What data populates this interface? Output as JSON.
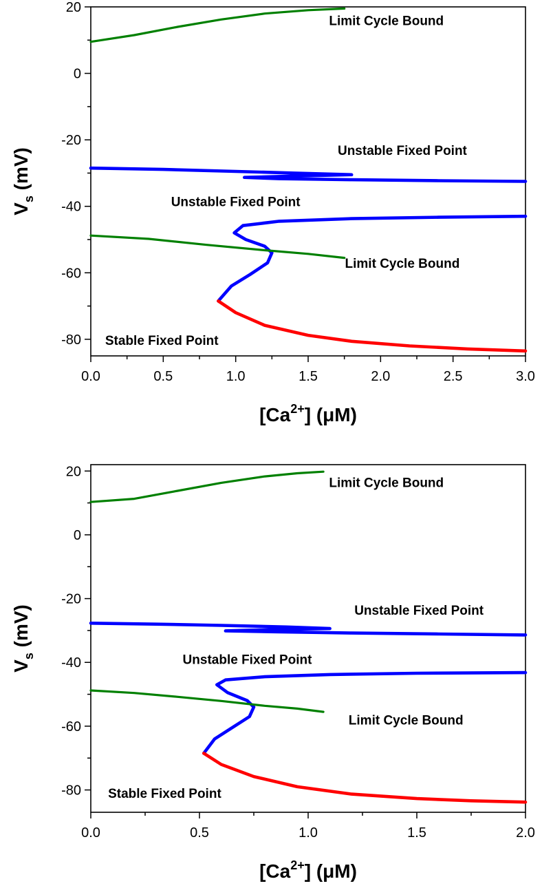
{
  "chart_data": [
    {
      "type": "line",
      "xlabel": "[Ca2+] (μM)",
      "ylabel": "Vs (mV)",
      "xlim": [
        0.0,
        3.0
      ],
      "ylim": [
        -85,
        20
      ],
      "xticks": [
        "0.0",
        "0.5",
        "1.0",
        "1.5",
        "2.0",
        "2.5",
        "3.0"
      ],
      "yticks": [
        "20",
        "0",
        "-20",
        "-40",
        "-60",
        "-80"
      ],
      "grid": false,
      "colors": {
        "stable": "#ff0000",
        "unstable": "#0000ff",
        "limit_cycle": "#008000"
      },
      "series": [
        {
          "kind": "limit_cycle",
          "points": [
            [
              0.0,
              9.5
            ],
            [
              0.3,
              11.5
            ],
            [
              0.6,
              14.0
            ],
            [
              0.9,
              16.2
            ],
            [
              1.2,
              18.0
            ],
            [
              1.5,
              19.0
            ],
            [
              1.75,
              19.5
            ]
          ]
        },
        {
          "kind": "unstable",
          "points": [
            [
              0.0,
              -28.5
            ],
            [
              0.5,
              -28.9
            ],
            [
              1.0,
              -29.5
            ],
            [
              1.4,
              -30.0
            ],
            [
              1.8,
              -30.5
            ],
            [
              1.4,
              -30.9
            ],
            [
              1.06,
              -31.3
            ],
            [
              1.3,
              -31.7
            ],
            [
              1.8,
              -32.0
            ],
            [
              2.4,
              -32.3
            ],
            [
              3.0,
              -32.5
            ]
          ]
        },
        {
          "kind": "unstable",
          "points": [
            [
              0.88,
              -68.5
            ],
            [
              0.97,
              -64.0
            ],
            [
              1.1,
              -60.5
            ],
            [
              1.22,
              -57.0
            ],
            [
              1.25,
              -54.0
            ],
            [
              1.2,
              -52.0
            ],
            [
              1.07,
              -50.0
            ],
            [
              0.99,
              -48.0
            ],
            [
              1.05,
              -45.8
            ],
            [
              1.3,
              -44.5
            ],
            [
              1.8,
              -43.7
            ],
            [
              2.4,
              -43.3
            ],
            [
              3.0,
              -43.0
            ]
          ]
        },
        {
          "kind": "stable",
          "points": [
            [
              0.88,
              -68.5
            ],
            [
              1.0,
              -72.0
            ],
            [
              1.2,
              -75.8
            ],
            [
              1.5,
              -78.8
            ],
            [
              1.8,
              -80.6
            ],
            [
              2.2,
              -82.0
            ],
            [
              2.6,
              -82.9
            ],
            [
              3.0,
              -83.5
            ]
          ]
        },
        {
          "kind": "limit_cycle",
          "points": [
            [
              0.0,
              -48.8
            ],
            [
              0.4,
              -49.8
            ],
            [
              0.8,
              -51.6
            ],
            [
              1.2,
              -53.2
            ],
            [
              1.5,
              -54.3
            ],
            [
              1.75,
              -55.5
            ]
          ]
        }
      ],
      "annotations": [
        {
          "text": "Limit Cycle Bound",
          "x": 2.04,
          "y": 14.5
        },
        {
          "text": "Unstable Fixed Point",
          "x": 2.15,
          "y": -24.5
        },
        {
          "text": "Unstable Fixed Point",
          "x": 1.0,
          "y": -40.0
        },
        {
          "text": "Limit Cycle Bound",
          "x": 2.15,
          "y": -58.5
        },
        {
          "text": "Stable Fixed Point",
          "x": 0.49,
          "y": -81.7
        }
      ]
    },
    {
      "type": "line",
      "xlabel": "[Ca2+] (μM)",
      "ylabel": "Vs (mV)",
      "xlim": [
        0.0,
        2.0
      ],
      "ylim": [
        -87,
        22
      ],
      "xticks": [
        "0.0",
        "0.5",
        "1.0",
        "1.5",
        "2.0"
      ],
      "yticks": [
        "20",
        "0",
        "-20",
        "-40",
        "-60",
        "-80"
      ],
      "grid": false,
      "colors": {
        "stable": "#ff0000",
        "unstable": "#0000ff",
        "limit_cycle": "#008000"
      },
      "series": [
        {
          "kind": "limit_cycle",
          "points": [
            [
              0.0,
              10.3
            ],
            [
              0.2,
              11.3
            ],
            [
              0.4,
              13.8
            ],
            [
              0.6,
              16.3
            ],
            [
              0.8,
              18.3
            ],
            [
              0.95,
              19.3
            ],
            [
              1.07,
              19.8
            ]
          ]
        },
        {
          "kind": "unstable",
          "points": [
            [
              0.0,
              -27.7
            ],
            [
              0.3,
              -28.0
            ],
            [
              0.6,
              -28.4
            ],
            [
              0.9,
              -28.9
            ],
            [
              1.1,
              -29.4
            ],
            [
              0.85,
              -29.7
            ],
            [
              0.62,
              -30.1
            ],
            [
              0.85,
              -30.4
            ],
            [
              1.2,
              -30.8
            ],
            [
              1.6,
              -31.1
            ],
            [
              2.0,
              -31.4
            ]
          ]
        },
        {
          "kind": "unstable",
          "points": [
            [
              0.52,
              -68.5
            ],
            [
              0.57,
              -64.0
            ],
            [
              0.65,
              -60.5
            ],
            [
              0.73,
              -57.0
            ],
            [
              0.75,
              -54.0
            ],
            [
              0.72,
              -52.0
            ],
            [
              0.63,
              -49.5
            ],
            [
              0.58,
              -47.0
            ],
            [
              0.62,
              -45.5
            ],
            [
              0.8,
              -44.5
            ],
            [
              1.1,
              -43.8
            ],
            [
              1.5,
              -43.4
            ],
            [
              2.0,
              -43.2
            ]
          ]
        },
        {
          "kind": "stable",
          "points": [
            [
              0.52,
              -68.5
            ],
            [
              0.6,
              -72.0
            ],
            [
              0.75,
              -75.8
            ],
            [
              0.95,
              -79.0
            ],
            [
              1.2,
              -81.3
            ],
            [
              1.5,
              -82.7
            ],
            [
              1.75,
              -83.4
            ],
            [
              2.0,
              -83.8
            ]
          ]
        },
        {
          "kind": "limit_cycle",
          "points": [
            [
              0.0,
              -48.8
            ],
            [
              0.2,
              -49.6
            ],
            [
              0.4,
              -50.8
            ],
            [
              0.6,
              -52.1
            ],
            [
              0.8,
              -53.6
            ],
            [
              0.95,
              -54.5
            ],
            [
              1.07,
              -55.5
            ]
          ]
        }
      ],
      "annotations": [
        {
          "text": "Limit Cycle Bound",
          "x": 1.36,
          "y": 15.0
        },
        {
          "text": "Unstable Fixed Point",
          "x": 1.51,
          "y": -25.0
        },
        {
          "text": "Unstable Fixed Point",
          "x": 0.72,
          "y": -40.5
        },
        {
          "text": "Limit Cycle Bound",
          "x": 1.45,
          "y": -59.5
        },
        {
          "text": "Stable Fixed Point",
          "x": 0.34,
          "y": -82.5
        }
      ]
    }
  ]
}
